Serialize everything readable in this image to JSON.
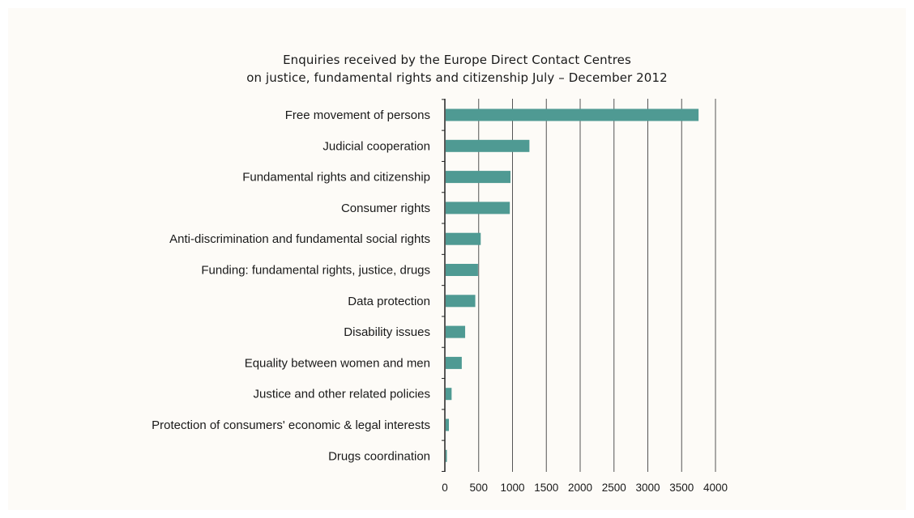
{
  "chart_data": {
    "type": "bar",
    "orientation": "horizontal",
    "title": "Enquiries received by the Europe Direct Contact Centres",
    "subtitle": "on justice, fundamental rights and citizenship July – December 2012",
    "categories": [
      "Free movement of persons",
      "Judicial cooperation",
      "Fundamental rights and citizenship",
      "Consumer rights",
      "Anti-discrimination and fundamental social rights",
      "Funding: fundamental rights, justice, drugs",
      "Data protection",
      "Disability issues",
      "Equality between women and men",
      "Justice and other related policies",
      "Protection of consumers' economic & legal interests",
      "Drugs coordination"
    ],
    "values": [
      3750,
      1250,
      970,
      960,
      530,
      490,
      450,
      300,
      250,
      100,
      60,
      20
    ],
    "xticks": [
      "0",
      "500",
      "1000",
      "1500",
      "2000",
      "2500",
      "3000",
      "3500",
      "4000"
    ],
    "xlim": [
      0,
      4000
    ],
    "grid": "vertical",
    "legend": "none",
    "bar_color": "#4f9a93",
    "grid_color": "#555555",
    "axis_color": "#222222"
  }
}
